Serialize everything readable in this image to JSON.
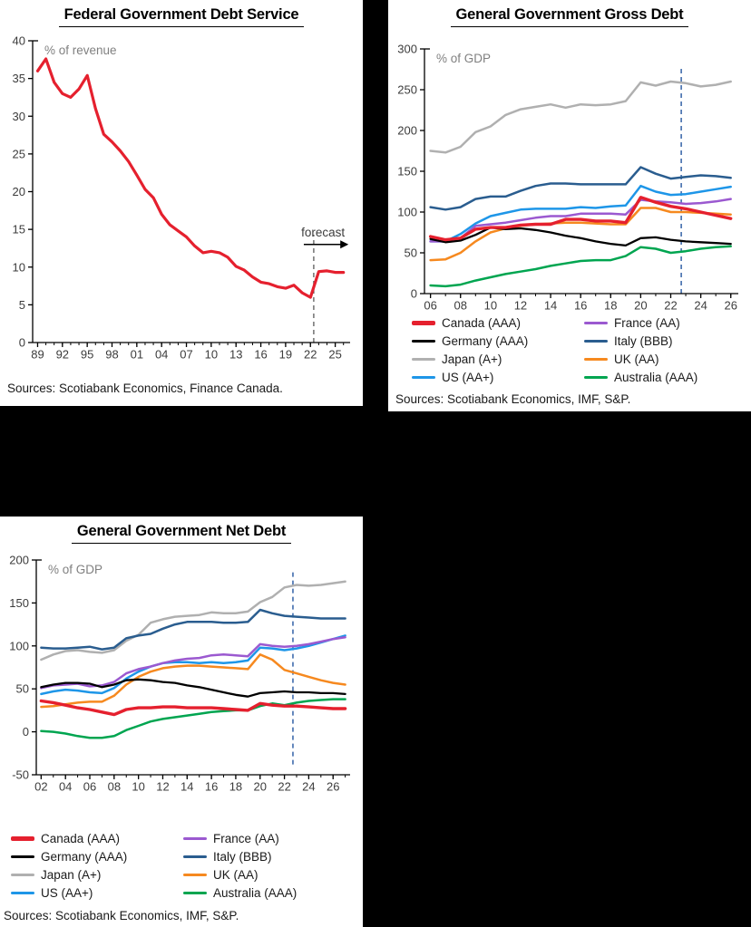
{
  "page": {
    "background": "#000000",
    "panel_background": "#ffffff"
  },
  "colors": {
    "canada": "#e5202e",
    "germany": "#000000",
    "japan": "#b0b0b0",
    "us": "#1e96e8",
    "france": "#9b59d0",
    "italy": "#2a5d8f",
    "uk": "#f6891f",
    "australia": "#00a550",
    "vline_blue": "#2456a0",
    "vline_gray": "#666666"
  },
  "chart_data": [
    {
      "type": "line",
      "title": "Federal Government Debt Service",
      "ylabel": "% of revenue",
      "annotation": "forecast",
      "sources": "Sources: Scotiabank Economics, Finance Canada.",
      "x_start": 1989,
      "x_freq": 1,
      "xlim": [
        1988.4,
        2026.8
      ],
      "ylim": [
        0,
        40
      ],
      "yticks": [
        0,
        5,
        10,
        15,
        20,
        25,
        30,
        35,
        40
      ],
      "xticks": [
        1989,
        1992,
        1995,
        1998,
        2001,
        2004,
        2007,
        2010,
        2013,
        2016,
        2019,
        2022,
        2025
      ],
      "xtick_labels": [
        "89",
        "92",
        "95",
        "98",
        "01",
        "04",
        "07",
        "10",
        "13",
        "16",
        "19",
        "22",
        "25"
      ],
      "vline": {
        "x": 2022.4,
        "y0": 0,
        "y1": 14.3,
        "color": "#666666"
      },
      "arrow": {
        "x0": 2021.2,
        "x1": 2026.6,
        "y": 13
      },
      "draw_order": [
        0
      ],
      "series": [
        {
          "name": "Canada",
          "color": "#e5202e",
          "width": 3.2,
          "values": [
            36,
            37.6,
            34.5,
            33,
            32.5,
            33.6,
            35.4,
            31,
            27.6,
            26.6,
            25.4,
            24,
            22.2,
            20.3,
            19.2,
            17,
            15.6,
            14.8,
            14,
            12.8,
            11.9,
            12.1,
            11.9,
            11.3,
            10.1,
            9.6,
            8.7,
            8,
            7.8,
            7.4,
            7.2,
            7.6,
            6.6,
            6,
            9.4,
            9.5,
            9.3,
            9.3
          ]
        }
      ]
    },
    {
      "type": "line",
      "title": "General Government Gross Debt",
      "ylabel": "% of GDP",
      "sources": "Sources: Scotiabank Economics, IMF, S&P.",
      "x_start": 2006,
      "x_freq": 1,
      "xlim": [
        2005.6,
        2026.5
      ],
      "ylim": [
        0,
        300
      ],
      "yticks": [
        0,
        50,
        100,
        150,
        200,
        250,
        300
      ],
      "xticks": [
        2006,
        2008,
        2010,
        2012,
        2014,
        2016,
        2018,
        2020,
        2022,
        2024,
        2026
      ],
      "xtick_labels": [
        "06",
        "08",
        "10",
        "12",
        "14",
        "16",
        "18",
        "20",
        "22",
        "24",
        "26"
      ],
      "vline": {
        "x": 2022.7,
        "y0": 0,
        "y1": 277,
        "color": "#2456a0"
      },
      "draw_order": [
        2,
        5,
        3,
        4,
        6,
        1,
        7,
        0
      ],
      "series": [
        {
          "name": "Canada (AAA)",
          "color": "#e5202e",
          "width": 3.4,
          "values": [
            70,
            66,
            68,
            79,
            81,
            81,
            84,
            85,
            85,
            91,
            91,
            89,
            89,
            87,
            118,
            112,
            107,
            104,
            100,
            96,
            92
          ]
        },
        {
          "name": "Germany (AAA)",
          "color": "#000000",
          "width": 2.3,
          "values": [
            67,
            63,
            65,
            72,
            81,
            79,
            80,
            78,
            75,
            71,
            68,
            64,
            61,
            59,
            68,
            69,
            66,
            64,
            63,
            62,
            61
          ]
        },
        {
          "name": "Japan (A+)",
          "color": "#b0b0b0",
          "width": 2.5,
          "values": [
            175,
            173,
            180,
            198,
            205,
            219,
            226,
            229,
            232,
            228,
            232,
            231,
            232,
            236,
            259,
            255,
            260,
            258,
            254,
            256,
            260
          ]
        },
        {
          "name": "US (AA+)",
          "color": "#1e96e8",
          "width": 2.5,
          "values": [
            64,
            64,
            73,
            86,
            95,
            99,
            103,
            104,
            104,
            104,
            106,
            105,
            107,
            108,
            132,
            125,
            121,
            122,
            125,
            128,
            131
          ]
        },
        {
          "name": "France (AA)",
          "color": "#9b59d0",
          "width": 2.5,
          "values": [
            64,
            64,
            68,
            83,
            85,
            87,
            90,
            93,
            95,
            95,
            98,
            98,
            98,
            97,
            115,
            113,
            112,
            110,
            111,
            113,
            116
          ]
        },
        {
          "name": "Italy (BBB)",
          "color": "#2a5d8f",
          "width": 2.5,
          "values": [
            106,
            103,
            106,
            116,
            119,
            119,
            126,
            132,
            135,
            135,
            134,
            134,
            134,
            134,
            155,
            147,
            141,
            143,
            145,
            144,
            142
          ]
        },
        {
          "name": "UK (AA)",
          "color": "#f6891f",
          "width": 2.5,
          "values": [
            41,
            42,
            50,
            64,
            75,
            80,
            83,
            85,
            86,
            87,
            87,
            86,
            85,
            85,
            105,
            105,
            100,
            100,
            99,
            98,
            97
          ]
        },
        {
          "name": "Australia (AAA)",
          "color": "#00a550",
          "width": 2.5,
          "values": [
            10,
            9,
            11,
            16,
            20,
            24,
            27,
            30,
            34,
            37,
            40,
            41,
            41,
            46,
            57,
            55,
            50,
            52,
            55,
            57,
            58
          ]
        }
      ]
    },
    {
      "type": "line",
      "title": "General Government Net Debt",
      "ylabel": "% of GDP",
      "sources": "Sources: Scotiabank Economics, IMF, S&P.",
      "x_start": 2002,
      "x_freq": 1,
      "xlim": [
        2001.6,
        2027.4
      ],
      "ylim": [
        -50,
        200
      ],
      "yticks": [
        -50,
        0,
        50,
        100,
        150,
        200
      ],
      "xticks": [
        2002,
        2004,
        2006,
        2008,
        2010,
        2012,
        2014,
        2016,
        2018,
        2020,
        2022,
        2024,
        2026
      ],
      "xtick_labels": [
        "02",
        "04",
        "06",
        "08",
        "10",
        "12",
        "14",
        "16",
        "18",
        "20",
        "22",
        "24",
        "26"
      ],
      "vline": {
        "x": 2022.7,
        "y0": -38,
        "y1": 186,
        "color": "#2456a0"
      },
      "draw_order": [
        2,
        5,
        3,
        4,
        6,
        1,
        7,
        0
      ],
      "series": [
        {
          "name": "Canada (AAA)",
          "color": "#e5202e",
          "width": 3.4,
          "values": [
            36,
            34,
            31,
            28,
            26,
            23,
            20,
            26,
            28,
            28,
            29,
            29,
            28,
            28,
            28,
            27,
            26,
            25,
            33,
            31,
            30,
            30,
            29,
            28,
            27,
            27
          ]
        },
        {
          "name": "Germany (AAA)",
          "color": "#000000",
          "width": 2.3,
          "values": [
            52,
            55,
            57,
            57,
            56,
            52,
            55,
            60,
            61,
            60,
            58,
            57,
            54,
            52,
            49,
            46,
            43,
            41,
            45,
            46,
            47,
            46,
            46,
            45,
            45,
            44
          ]
        },
        {
          "name": "Japan (A+)",
          "color": "#b0b0b0",
          "width": 2.5,
          "values": [
            84,
            90,
            94,
            95,
            93,
            92,
            95,
            106,
            113,
            127,
            131,
            134,
            135,
            136,
            139,
            138,
            138,
            140,
            151,
            157,
            168,
            171,
            170,
            171,
            173,
            175
          ]
        },
        {
          "name": "US (AA+)",
          "color": "#1e96e8",
          "width": 2.5,
          "values": [
            44,
            47,
            49,
            48,
            46,
            45,
            51,
            62,
            70,
            76,
            80,
            81,
            81,
            80,
            81,
            80,
            81,
            83,
            98,
            97,
            95,
            97,
            100,
            104,
            108,
            112
          ]
        },
        {
          "name": "France (AA)",
          "color": "#9b59d0",
          "width": 2.5,
          "values": [
            51,
            54,
            55,
            56,
            53,
            54,
            58,
            68,
            73,
            76,
            80,
            83,
            85,
            86,
            89,
            90,
            89,
            88,
            102,
            100,
            99,
            100,
            102,
            105,
            108,
            110
          ]
        },
        {
          "name": "Italy (BBB)",
          "color": "#2a5d8f",
          "width": 2.5,
          "values": [
            98,
            97,
            97,
            98,
            99,
            96,
            98,
            109,
            112,
            114,
            120,
            125,
            128,
            128,
            128,
            127,
            127,
            128,
            142,
            138,
            135,
            134,
            133,
            132,
            132,
            132
          ]
        },
        {
          "name": "UK (AA)",
          "color": "#f6891f",
          "width": 2.5,
          "values": [
            29,
            30,
            32,
            34,
            35,
            35,
            42,
            55,
            64,
            70,
            74,
            76,
            77,
            77,
            76,
            75,
            74,
            73,
            90,
            84,
            72,
            68,
            64,
            60,
            57,
            55
          ]
        },
        {
          "name": "Australia (AAA)",
          "color": "#00a550",
          "width": 2.5,
          "values": [
            1,
            0,
            -2,
            -5,
            -7,
            -7,
            -5,
            2,
            7,
            12,
            15,
            17,
            19,
            21,
            23,
            24,
            25,
            25,
            30,
            33,
            31,
            34,
            36,
            37,
            38,
            38
          ]
        }
      ]
    }
  ]
}
